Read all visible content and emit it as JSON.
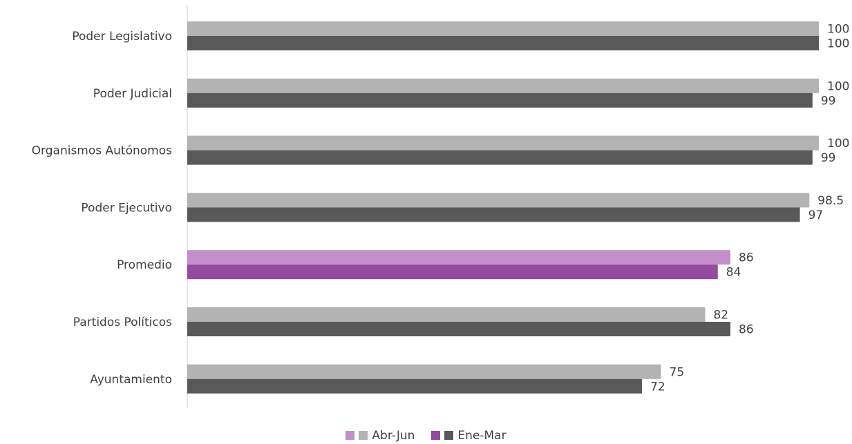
{
  "chart_data": {
    "type": "bar",
    "orientation": "horizontal",
    "categories": [
      "Poder Legislativo",
      "Poder Judicial",
      "Organismos Autónomos",
      "Poder Ejecutivo",
      "Promedio",
      "Partidos Políticos",
      "Ayuntamiento"
    ],
    "series": [
      {
        "name": "Abr-Jun",
        "values": [
          100,
          100,
          100,
          98.5,
          86,
          82,
          75
        ],
        "value_labels": [
          "100",
          "100",
          "100",
          "98.5",
          "86",
          "82",
          "75"
        ]
      },
      {
        "name": "Ene-Mar",
        "values": [
          100,
          99,
          99,
          97,
          84,
          86,
          72
        ],
        "value_labels": [
          "100",
          "99",
          "99",
          "97",
          "84",
          "86",
          "72"
        ]
      }
    ],
    "xlim": [
      0,
      100
    ],
    "grid": false,
    "legend_position": "bottom",
    "colors": {
      "Abr-Jun": "#b3b3b3",
      "Ene-Mar": "#595959",
      "highlight_Abr-Jun": "#c38fca",
      "highlight_Ene-Mar": "#944a9f",
      "axis": "#d0d0d0"
    },
    "highlight_category": "Promedio"
  }
}
